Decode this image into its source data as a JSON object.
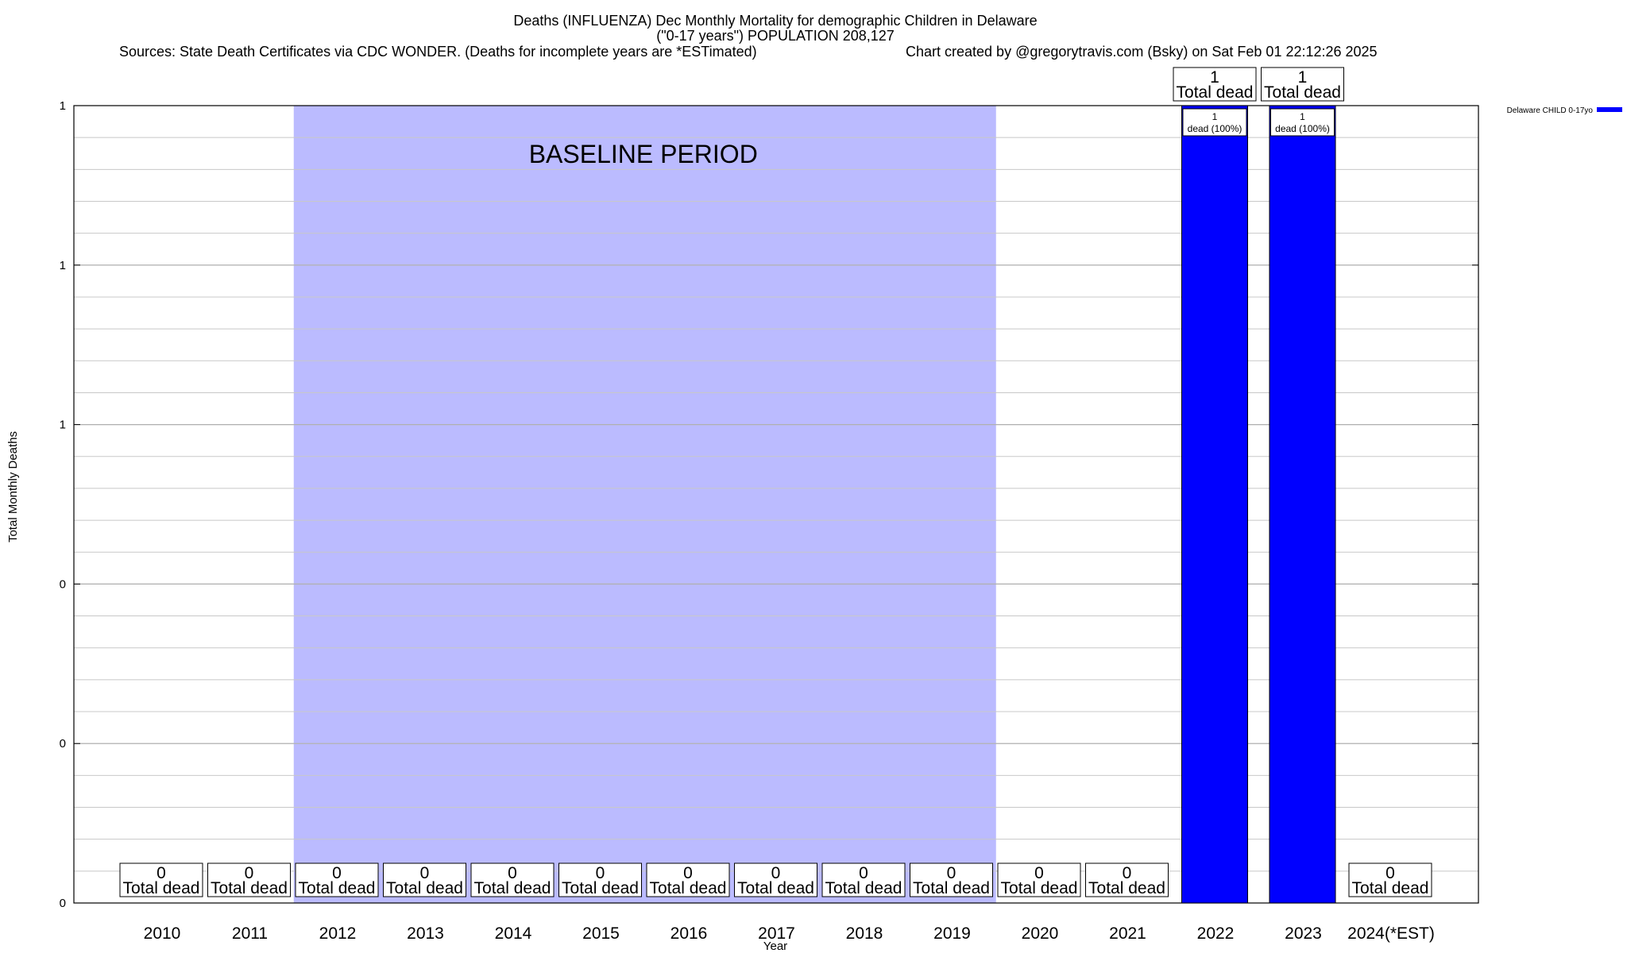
{
  "chart_data": {
    "type": "bar",
    "title_lines": [
      "Deaths (INFLUENZA) Dec Monthly Mortality for demographic Children in Delaware",
      "(\"0-17 years\") POPULATION 208,127"
    ],
    "sources": "Sources: State Death Certificates via CDC WONDER. (Deaths for incomplete years are *ESTimated)",
    "credit": "Chart created by @gregorytravis.com (Bsky) on Sat Feb 01 22:12:26 2025",
    "xlabel": "Year",
    "ylabel": "Total Monthly Deaths",
    "ylim": [
      0,
      1
    ],
    "y_tick_labels": [
      "0",
      "0",
      "0",
      "1",
      "1",
      "1"
    ],
    "categories": [
      "2010",
      "2011",
      "2012",
      "2013",
      "2014",
      "2015",
      "2016",
      "2017",
      "2018",
      "2019",
      "2020",
      "2021",
      "2022",
      "2023",
      "2024(*EST)"
    ],
    "series": [
      {
        "name": "Delaware CHILD 0-17yo",
        "color": "#0000ff",
        "values": [
          0,
          0,
          0,
          0,
          0,
          0,
          0,
          0,
          0,
          0,
          0,
          0,
          1,
          1,
          0
        ]
      }
    ],
    "total_label_text": "Total dead",
    "inner_labels": [
      {
        "category": "2022",
        "lines": [
          "1",
          "dead (100%)"
        ]
      },
      {
        "category": "2023",
        "lines": [
          "1",
          "dead (100%)"
        ]
      }
    ],
    "baseline": {
      "label": "BASELINE PERIOD",
      "from": "2012",
      "to": "2019",
      "color": "#bbbbff"
    },
    "grid": true,
    "legend_position": "top-right"
  }
}
